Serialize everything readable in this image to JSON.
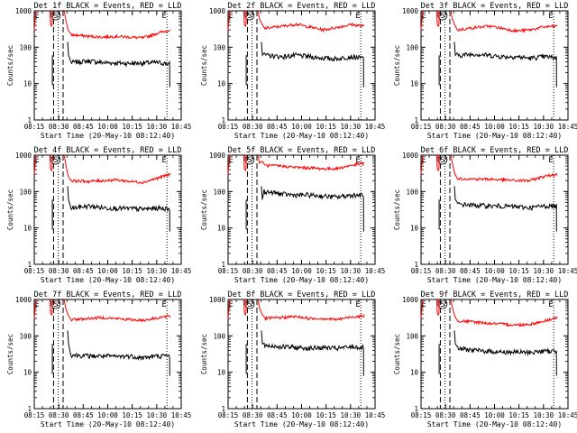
{
  "shared": {
    "y_label": "Counts/sec",
    "x_label": "Start Time (20-May-10 08:12:40)",
    "x_ticks": [
      "08:15",
      "08:30",
      "08:45",
      "10:00",
      "10:15",
      "10:30",
      "10:45"
    ],
    "y_ticks": [
      "1",
      "10",
      "100",
      "1000"
    ],
    "markers": {
      "start": "S",
      "end": "E"
    }
  },
  "colors": {
    "events": "#000000",
    "lld": "#ff0000"
  },
  "panels": [
    {
      "title": "Det 1f  BLACK = Events, RED = LLD"
    },
    {
      "title": "Det 2f  BLACK = Events, RED = LLD"
    },
    {
      "title": "Det 3f  BLACK = Events, RED = LLD"
    },
    {
      "title": "Det 4f  BLACK = Events, RED = LLD"
    },
    {
      "title": "Det 5f  BLACK = Events, RED = LLD"
    },
    {
      "title": "Det 6f  BLACK = Events, RED = LLD"
    },
    {
      "title": "Det 7f  BLACK = Events, RED = LLD"
    },
    {
      "title": "Det 8f  BLACK = Events, RED = LLD"
    },
    {
      "title": "Det 9f  BLACK = Events, RED = LLD"
    }
  ],
  "chart_data": [
    {
      "type": "line",
      "title": "Det 1f  BLACK = Events, RED = LLD",
      "xlabel": "Start Time (20-May-10 08:12:40)",
      "ylabel": "Counts/sec",
      "x_ticks": [
        "08:15",
        "08:30",
        "08:45",
        "10:00",
        "10:15",
        "10:30",
        "10:45"
      ],
      "yscale": "log",
      "ylim": [
        1,
        1000
      ],
      "series": [
        {
          "name": "Events",
          "color": "#000000",
          "x": [
            27.0,
            40,
            50,
            60,
            70,
            80,
            90,
            99.5
          ],
          "y": [
            38,
            42,
            38,
            37,
            36,
            37,
            38,
            35
          ]
        },
        {
          "name": "LLD",
          "color": "#ff0000",
          "x": [
            27.0,
            40,
            50,
            60,
            70,
            80,
            90,
            100
          ],
          "y": [
            220,
            200,
            190,
            200,
            190,
            180,
            240,
            300
          ]
        }
      ]
    },
    {
      "type": "line",
      "title": "Det 2f  BLACK = Events, RED = LLD",
      "xlabel": "Start Time (20-May-10 08:12:40)",
      "ylabel": "Counts/sec",
      "x_ticks": [
        "08:15",
        "08:30",
        "08:45",
        "10:00",
        "10:15",
        "10:30",
        "10:45"
      ],
      "yscale": "log",
      "ylim": [
        1,
        1000
      ],
      "series": [
        {
          "name": "Events",
          "color": "#000000",
          "x": [
            27.0,
            40,
            50,
            60,
            70,
            80,
            90,
            99.5
          ],
          "y": [
            60,
            55,
            60,
            55,
            50,
            48,
            55,
            50
          ]
        },
        {
          "name": "LLD",
          "color": "#ff0000",
          "x": [
            27.0,
            40,
            50,
            60,
            70,
            80,
            90,
            100
          ],
          "y": [
            330,
            380,
            430,
            360,
            300,
            350,
            420,
            380
          ]
        }
      ]
    },
    {
      "type": "line",
      "title": "Det 3f  BLACK = Events, RED = LLD",
      "xlabel": "Start Time (20-May-10 08:12:40)",
      "ylabel": "Counts/sec",
      "x_ticks": [
        "08:15",
        "08:30",
        "08:45",
        "10:00",
        "10:15",
        "10:30",
        "10:45"
      ],
      "yscale": "log",
      "ylim": [
        1,
        1000
      ],
      "series": [
        {
          "name": "Events",
          "color": "#000000",
          "x": [
            27.0,
            40,
            50,
            60,
            70,
            80,
            90,
            99.5
          ],
          "y": [
            60,
            65,
            60,
            55,
            55,
            50,
            55,
            52
          ]
        },
        {
          "name": "LLD",
          "color": "#ff0000",
          "x": [
            27.0,
            40,
            50,
            60,
            70,
            80,
            90,
            100
          ],
          "y": [
            300,
            350,
            380,
            330,
            280,
            300,
            360,
            380
          ]
        }
      ]
    },
    {
      "type": "line",
      "title": "Det 4f  BLACK = Events, RED = LLD",
      "xlabel": "Start Time (20-May-10 08:12:40)",
      "ylabel": "Counts/sec",
      "x_ticks": [
        "08:15",
        "08:30",
        "08:45",
        "10:00",
        "10:15",
        "10:30",
        "10:45"
      ],
      "yscale": "log",
      "ylim": [
        1,
        1000
      ],
      "series": [
        {
          "name": "Events",
          "color": "#000000",
          "x": [
            27.0,
            40,
            50,
            60,
            70,
            80,
            90,
            99.5
          ],
          "y": [
            35,
            40,
            36,
            35,
            34,
            33,
            35,
            34
          ]
        },
        {
          "name": "LLD",
          "color": "#ff0000",
          "x": [
            27.0,
            40,
            50,
            60,
            70,
            80,
            90,
            100
          ],
          "y": [
            200,
            190,
            200,
            210,
            190,
            180,
            230,
            300
          ]
        }
      ]
    },
    {
      "type": "line",
      "title": "Det 5f  BLACK = Events, RED = LLD",
      "xlabel": "Start Time (20-May-10 08:12:40)",
      "ylabel": "Counts/sec",
      "x_ticks": [
        "08:15",
        "08:30",
        "08:45",
        "10:00",
        "10:15",
        "10:30",
        "10:45"
      ],
      "yscale": "log",
      "ylim": [
        1,
        1000
      ],
      "series": [
        {
          "name": "Events",
          "color": "#000000",
          "x": [
            27.0,
            40,
            50,
            60,
            70,
            80,
            90,
            99.5
          ],
          "y": [
            100,
            85,
            80,
            80,
            75,
            70,
            80,
            80
          ]
        },
        {
          "name": "LLD",
          "color": "#ff0000",
          "x": [
            27.0,
            40,
            50,
            60,
            70,
            80,
            90,
            100
          ],
          "y": [
            520,
            500,
            460,
            450,
            420,
            430,
            520,
            600
          ]
        }
      ]
    },
    {
      "type": "line",
      "title": "Det 6f  BLACK = Events, RED = LLD",
      "xlabel": "Start Time (20-May-10 08:12:40)",
      "ylabel": "Counts/sec",
      "x_ticks": [
        "08:15",
        "08:30",
        "08:45",
        "10:00",
        "10:15",
        "10:30",
        "10:45"
      ],
      "yscale": "log",
      "ylim": [
        1,
        1000
      ],
      "series": [
        {
          "name": "Events",
          "color": "#000000",
          "x": [
            27.0,
            40,
            50,
            60,
            70,
            80,
            90,
            99.5
          ],
          "y": [
            45,
            42,
            40,
            40,
            38,
            36,
            40,
            40
          ]
        },
        {
          "name": "LLD",
          "color": "#ff0000",
          "x": [
            27.0,
            40,
            50,
            60,
            70,
            80,
            90,
            100
          ],
          "y": [
            230,
            220,
            220,
            210,
            200,
            200,
            260,
            300
          ]
        }
      ]
    },
    {
      "type": "line",
      "title": "Det 7f  BLACK = Events, RED = LLD",
      "xlabel": "Start Time (20-May-10 08:12:40)",
      "ylabel": "Counts/sec",
      "x_ticks": [
        "08:15",
        "08:30",
        "08:45",
        "10:00",
        "10:15",
        "10:30",
        "10:45"
      ],
      "yscale": "log",
      "ylim": [
        1,
        1000
      ],
      "series": [
        {
          "name": "Events",
          "color": "#000000",
          "x": [
            27.0,
            40,
            50,
            60,
            70,
            80,
            90,
            99.5
          ],
          "y": [
            30,
            28,
            28,
            27,
            28,
            25,
            28,
            28
          ]
        },
        {
          "name": "LLD",
          "color": "#ff0000",
          "x": [
            27.0,
            40,
            50,
            60,
            70,
            80,
            90,
            100
          ],
          "y": [
            280,
            300,
            320,
            300,
            280,
            270,
            310,
            350
          ]
        }
      ]
    },
    {
      "type": "line",
      "title": "Det 8f  BLACK = Events, RED = LLD",
      "xlabel": "Start Time (20-May-10 08:12:40)",
      "ylabel": "Counts/sec",
      "x_ticks": [
        "08:15",
        "08:30",
        "08:45",
        "10:00",
        "10:15",
        "10:30",
        "10:45"
      ],
      "yscale": "log",
      "ylim": [
        1,
        1000
      ],
      "series": [
        {
          "name": "Events",
          "color": "#000000",
          "x": [
            27.0,
            40,
            50,
            60,
            70,
            80,
            90,
            99.5
          ],
          "y": [
            55,
            50,
            48,
            46,
            48,
            45,
            50,
            48
          ]
        },
        {
          "name": "LLD",
          "color": "#ff0000",
          "x": [
            27.0,
            40,
            50,
            60,
            70,
            80,
            90,
            100
          ],
          "y": [
            300,
            320,
            340,
            300,
            300,
            280,
            330,
            360
          ]
        }
      ]
    },
    {
      "type": "line",
      "title": "Det 9f  BLACK = Events, RED = LLD",
      "xlabel": "Start Time (20-May-10 08:12:40)",
      "ylabel": "Counts/sec",
      "x_ticks": [
        "08:15",
        "08:30",
        "08:45",
        "10:00",
        "10:15",
        "10:30",
        "10:45"
      ],
      "yscale": "log",
      "ylim": [
        1,
        1000
      ],
      "series": [
        {
          "name": "Events",
          "color": "#000000",
          "x": [
            27.0,
            40,
            50,
            60,
            70,
            80,
            90,
            99.5
          ],
          "y": [
            45,
            40,
            38,
            36,
            36,
            35,
            38,
            38
          ]
        },
        {
          "name": "LLD",
          "color": "#ff0000",
          "x": [
            27.0,
            40,
            50,
            60,
            70,
            80,
            90,
            100
          ],
          "y": [
            260,
            240,
            220,
            210,
            200,
            210,
            250,
            320
          ]
        }
      ]
    }
  ]
}
